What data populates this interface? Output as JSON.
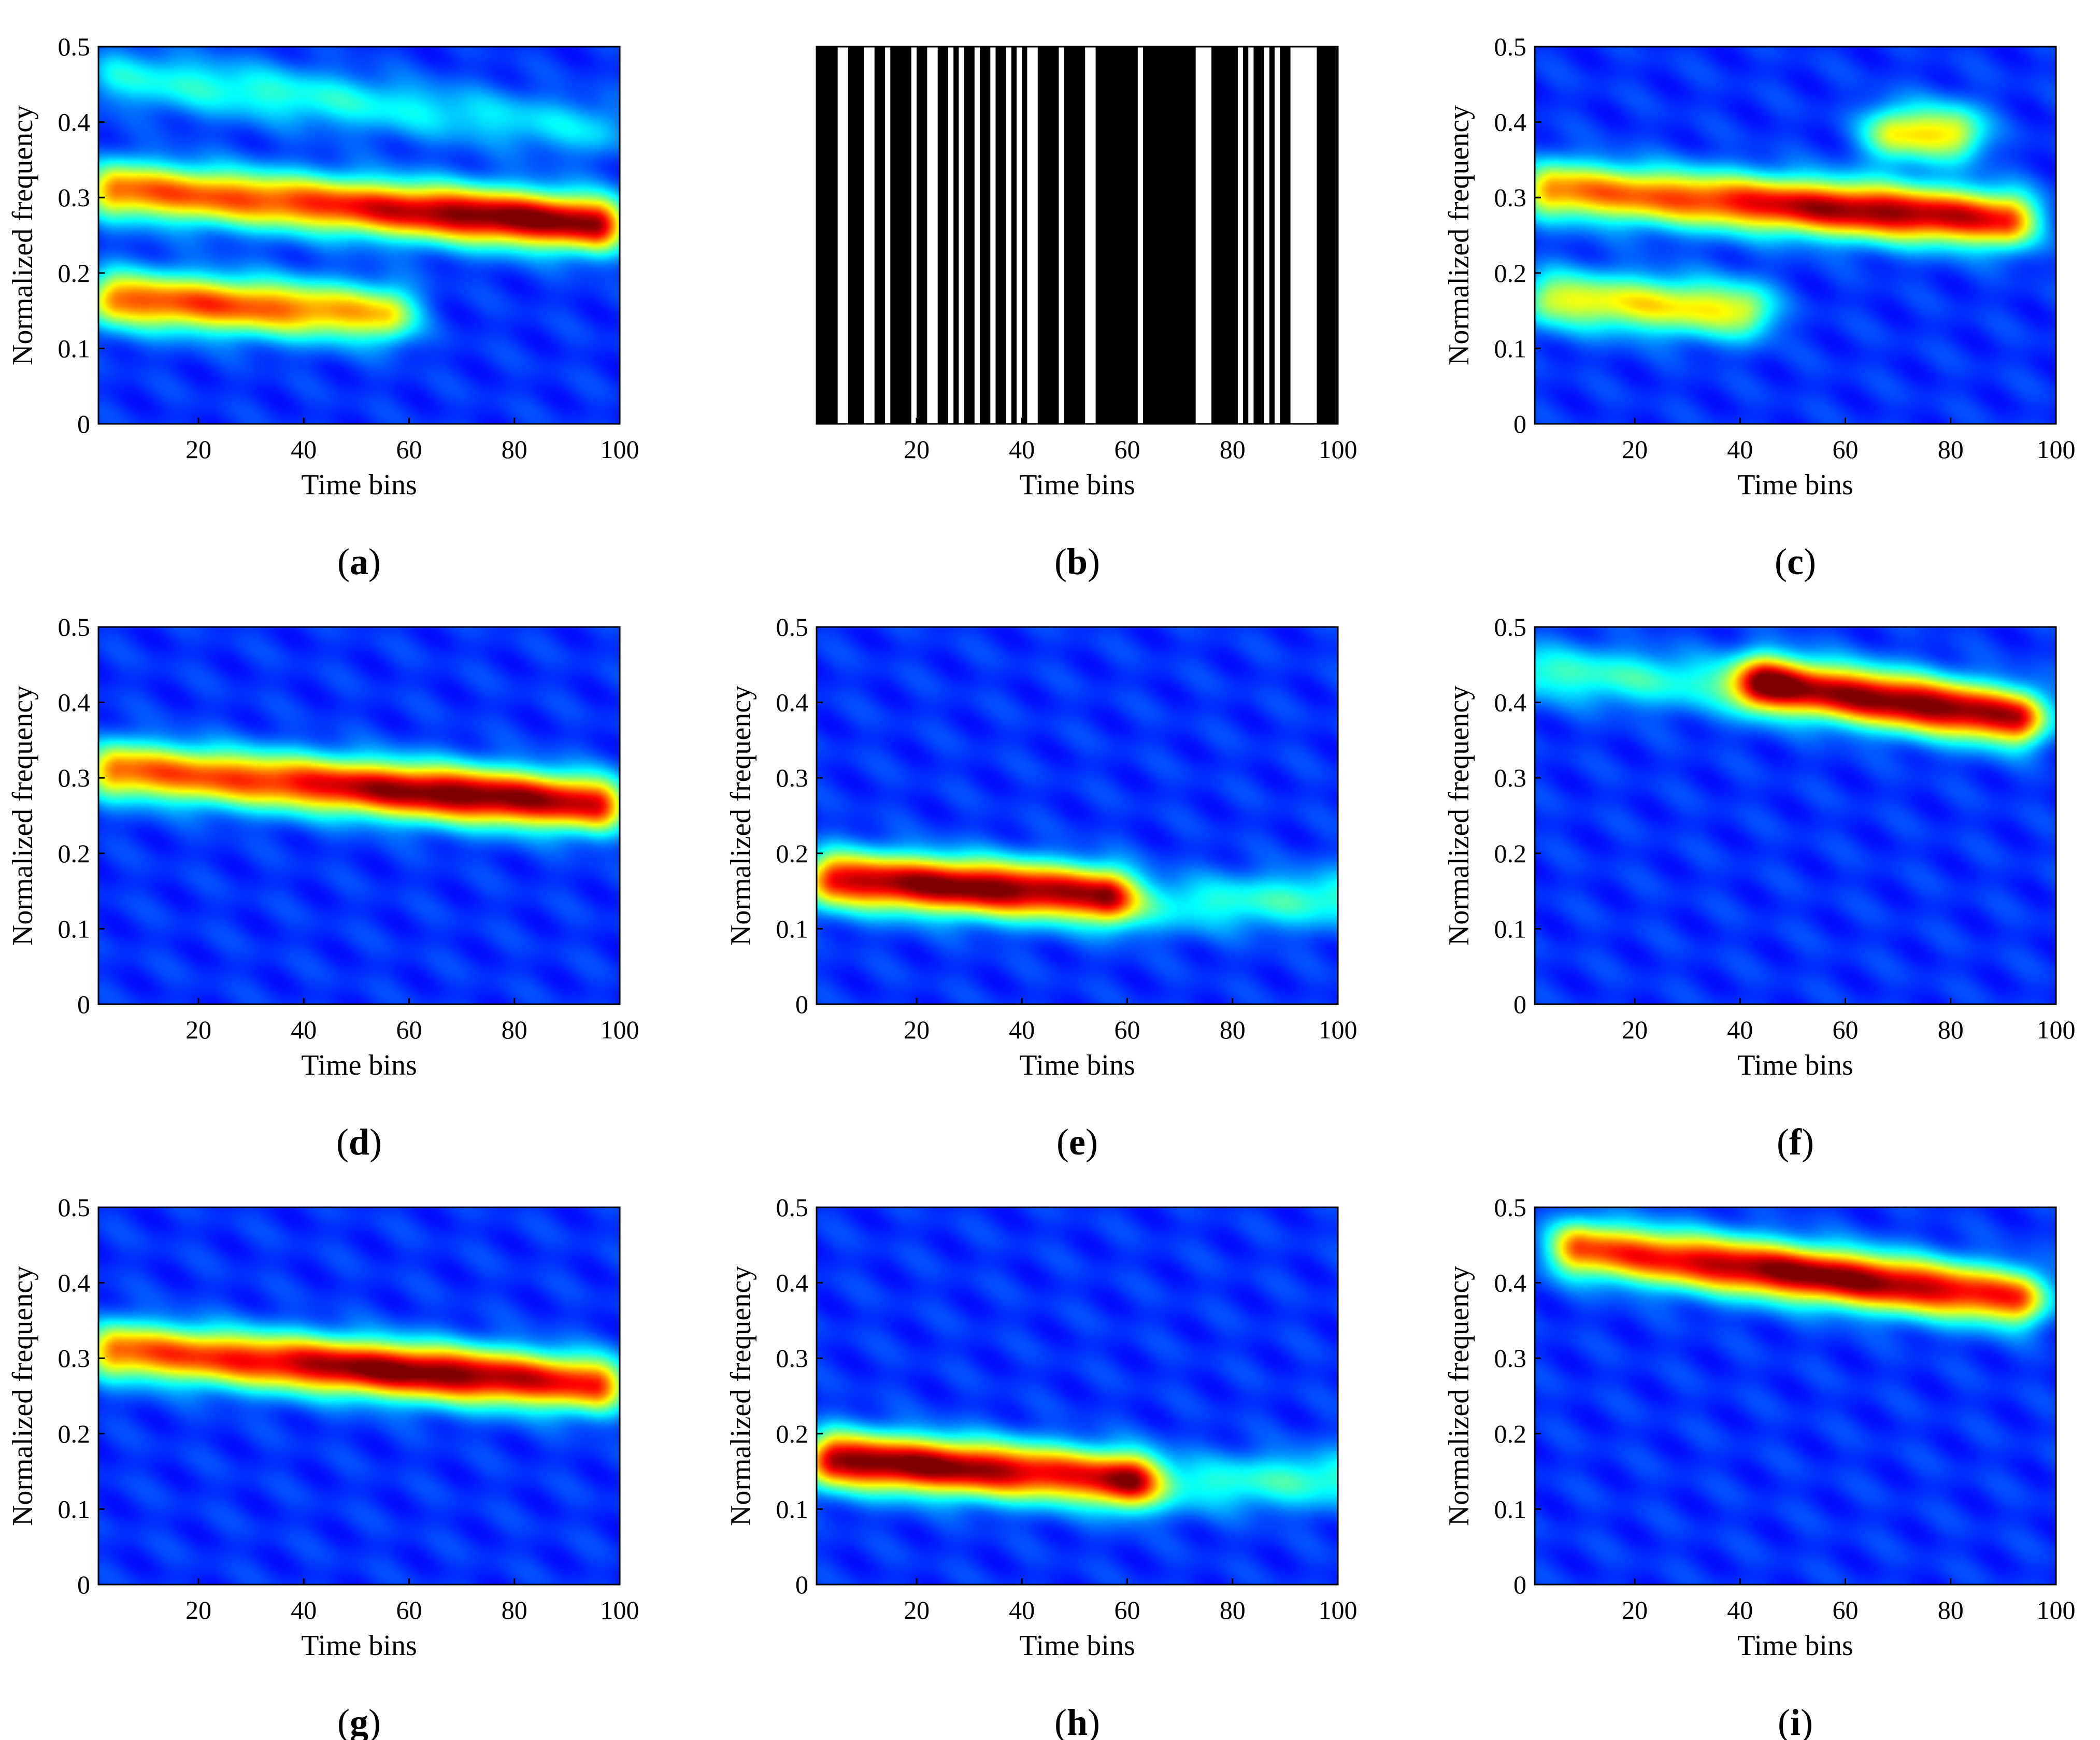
{
  "chart_data": [
    {
      "id": "a",
      "type": "heatmap",
      "caption_letter": "a",
      "xlabel": "Time bins",
      "ylabel": "Normalized frequency",
      "xlim": [
        1,
        100
      ],
      "ylim": [
        0,
        0.5
      ],
      "xticks": [
        20,
        40,
        60,
        80,
        100
      ],
      "yticks": [
        0,
        0.1,
        0.2,
        0.3,
        0.4,
        0.5
      ],
      "colormap": "jet",
      "ridges": [
        {
          "start": [
            5,
            0.31
          ],
          "end": [
            95,
            0.265
          ],
          "amplitude": 1.0,
          "peak_at": [
            80,
            0.27
          ]
        },
        {
          "start": [
            5,
            0.165
          ],
          "end": [
            55,
            0.145
          ],
          "amplitude": 0.75,
          "peak_at": [
            20,
            0.16
          ]
        },
        {
          "start": [
            5,
            0.46
          ],
          "end": [
            95,
            0.39
          ],
          "amplitude": 0.28,
          "peak_at": [
            30,
            0.44
          ]
        }
      ]
    },
    {
      "id": "b",
      "type": "bar",
      "caption_letter": "b",
      "xlabel": "Time bins",
      "ylabel": "",
      "xlim": [
        1,
        100
      ],
      "xticks": [
        20,
        40,
        60,
        80,
        100
      ],
      "mask_gaps_white": [
        [
          5,
          7
        ],
        [
          10,
          12
        ],
        [
          14,
          15
        ],
        [
          19,
          20
        ],
        [
          22,
          24
        ],
        [
          26,
          27
        ],
        [
          28,
          29
        ],
        [
          31,
          32
        ],
        [
          34,
          35
        ],
        [
          37,
          38
        ],
        [
          39,
          40
        ],
        [
          41,
          43
        ],
        [
          47,
          48
        ],
        [
          52,
          54
        ],
        [
          62,
          63
        ],
        [
          73,
          76
        ],
        [
          81,
          82
        ],
        [
          83,
          84
        ],
        [
          86,
          87
        ],
        [
          88,
          89
        ],
        [
          91,
          96
        ]
      ]
    },
    {
      "id": "c",
      "type": "heatmap",
      "caption_letter": "c",
      "xlabel": "Time bins",
      "ylabel": "Normalized frequency",
      "xlim": [
        1,
        100
      ],
      "ylim": [
        0,
        0.5
      ],
      "xticks": [
        20,
        40,
        60,
        80,
        100
      ],
      "yticks": [
        0,
        0.1,
        0.2,
        0.3,
        0.4,
        0.5
      ],
      "colormap": "jet",
      "ridges": [
        {
          "start": [
            5,
            0.31
          ],
          "end": [
            90,
            0.27
          ],
          "amplitude": 0.95,
          "peak_at": [
            65,
            0.28
          ]
        },
        {
          "start": [
            5,
            0.165
          ],
          "end": [
            40,
            0.15
          ],
          "amplitude": 0.55,
          "peak_at": [
            25,
            0.155
          ]
        },
        {
          "start": [
            70,
            0.385
          ],
          "end": [
            80,
            0.385
          ],
          "amplitude": 0.55,
          "peak_at": [
            75,
            0.385
          ]
        }
      ]
    },
    {
      "id": "d",
      "type": "heatmap",
      "caption_letter": "d",
      "xlabel": "Time bins",
      "ylabel": "Normalized frequency",
      "xlim": [
        1,
        100
      ],
      "ylim": [
        0,
        0.5
      ],
      "xticks": [
        20,
        40,
        60,
        80,
        100
      ],
      "yticks": [
        0,
        0.1,
        0.2,
        0.3,
        0.4,
        0.5
      ],
      "colormap": "jet",
      "ridges": [
        {
          "start": [
            5,
            0.31
          ],
          "end": [
            95,
            0.265
          ],
          "amplitude": 1.0,
          "peak_at": [
            70,
            0.275
          ]
        }
      ]
    },
    {
      "id": "e",
      "type": "heatmap",
      "caption_letter": "e",
      "xlabel": "Time bins",
      "ylabel": "Normalized frequency",
      "xlim": [
        1,
        100
      ],
      "ylim": [
        0,
        0.5
      ],
      "xticks": [
        20,
        40,
        60,
        80,
        100
      ],
      "yticks": [
        0,
        0.1,
        0.2,
        0.3,
        0.4,
        0.5
      ],
      "colormap": "jet",
      "ridges": [
        {
          "start": [
            5,
            0.165
          ],
          "end": [
            55,
            0.145
          ],
          "amplitude": 1.0,
          "peak_at": [
            30,
            0.155
          ]
        },
        {
          "start": [
            60,
            0.13
          ],
          "end": [
            100,
            0.14
          ],
          "amplitude": 0.3,
          "peak_at": [
            98,
            0.15
          ]
        }
      ]
    },
    {
      "id": "f",
      "type": "heatmap",
      "caption_letter": "f",
      "xlabel": "Time bins",
      "ylabel": "Normalized frequency",
      "xlim": [
        1,
        100
      ],
      "ylim": [
        0,
        0.5
      ],
      "xticks": [
        20,
        40,
        60,
        80,
        100
      ],
      "yticks": [
        0,
        0.1,
        0.2,
        0.3,
        0.4,
        0.5
      ],
      "colormap": "jet",
      "ridges": [
        {
          "start": [
            45,
            0.425
          ],
          "end": [
            92,
            0.38
          ],
          "amplitude": 1.0,
          "peak_at": [
            72,
            0.4
          ]
        },
        {
          "start": [
            2,
            0.44
          ],
          "end": [
            45,
            0.42
          ],
          "amplitude": 0.3,
          "peak_at": [
            10,
            0.44
          ]
        }
      ]
    },
    {
      "id": "g",
      "type": "heatmap",
      "caption_letter": "g",
      "xlabel": "Time bins",
      "ylabel": "Normalized frequency",
      "xlim": [
        1,
        100
      ],
      "ylim": [
        0,
        0.5
      ],
      "xticks": [
        20,
        40,
        60,
        80,
        100
      ],
      "yticks": [
        0,
        0.1,
        0.2,
        0.3,
        0.4,
        0.5
      ],
      "colormap": "jet",
      "ridges": [
        {
          "start": [
            5,
            0.31
          ],
          "end": [
            95,
            0.265
          ],
          "amplitude": 1.0,
          "peak_at": [
            60,
            0.28
          ]
        }
      ]
    },
    {
      "id": "h",
      "type": "heatmap",
      "caption_letter": "h",
      "xlabel": "Time bins",
      "ylabel": "Normalized frequency",
      "xlim": [
        1,
        100
      ],
      "ylim": [
        0,
        0.5
      ],
      "xticks": [
        20,
        40,
        60,
        80,
        100
      ],
      "yticks": [
        0,
        0.1,
        0.2,
        0.3,
        0.4,
        0.5
      ],
      "colormap": "jet",
      "ridges": [
        {
          "start": [
            5,
            0.165
          ],
          "end": [
            60,
            0.14
          ],
          "amplitude": 1.0,
          "peak_at": [
            18,
            0.16
          ]
        },
        {
          "start": [
            60,
            0.13
          ],
          "end": [
            100,
            0.14
          ],
          "amplitude": 0.3,
          "peak_at": [
            98,
            0.15
          ]
        }
      ]
    },
    {
      "id": "i",
      "type": "heatmap",
      "caption_letter": "i",
      "xlabel": "Time bins",
      "ylabel": "Normalized frequency",
      "xlim": [
        1,
        100
      ],
      "ylim": [
        0,
        0.5
      ],
      "xticks": [
        20,
        40,
        60,
        80,
        100
      ],
      "yticks": [
        0,
        0.1,
        0.2,
        0.3,
        0.4,
        0.5
      ],
      "colormap": "jet",
      "ridges": [
        {
          "start": [
            10,
            0.445
          ],
          "end": [
            92,
            0.38
          ],
          "amplitude": 1.0,
          "peak_at": [
            55,
            0.42
          ]
        }
      ]
    }
  ]
}
